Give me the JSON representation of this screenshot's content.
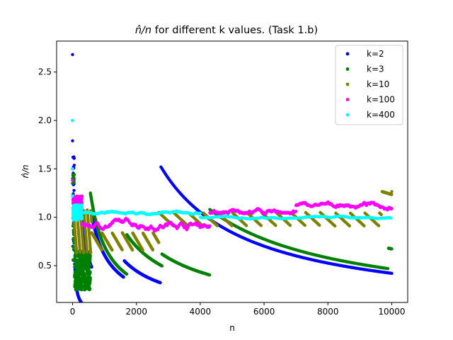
{
  "chart_data": {
    "type": "scatter",
    "title_math": "n̂/n",
    "title_rest": " for different k values. (Task 1.b)",
    "xlabel": "n",
    "ylabel_math": "n̂/n",
    "xlim": [
      -500,
      10500
    ],
    "ylim": [
      0.12,
      2.82
    ],
    "xticks": [
      0,
      2000,
      4000,
      6000,
      8000,
      10000
    ],
    "xtick_labels": [
      "0",
      "2000",
      "4000",
      "6000",
      "8000",
      "10000"
    ],
    "yticks": [
      0.5,
      1.0,
      1.5,
      2.0,
      2.5
    ],
    "ytick_labels": [
      "0.5",
      "1.0",
      "1.5",
      "2.0",
      "2.5"
    ],
    "legend_position": "top-right",
    "series": [
      {
        "name": "k=2",
        "color": "#0000ff",
        "outliers": [
          [
            0,
            2.68
          ],
          [
            0,
            2.0
          ],
          [
            0,
            1.79
          ],
          [
            0,
            1.5
          ]
        ],
        "segments": [
          {
            "x0": 10,
            "x1": 60,
            "y0": 1.2,
            "kind": "noise",
            "amp": 0.5
          },
          {
            "x0": 60,
            "x1": 280,
            "y0": 0.55,
            "kind": "decay"
          },
          {
            "x0": 290,
            "x1": 600,
            "y0": 1.0,
            "kind": "decay"
          },
          {
            "x0": 610,
            "x1": 1600,
            "y0": 1.0,
            "kind": "decay"
          },
          {
            "x0": 1620,
            "x1": 2750,
            "y0": 0.55,
            "kind": "decay"
          },
          {
            "x0": 2770,
            "x1": 10000,
            "y0": 1.52,
            "kind": "decay"
          }
        ]
      },
      {
        "name": "k=3",
        "color": "#008000",
        "outliers": [
          [
            0,
            1.4
          ],
          [
            0,
            1.35
          ]
        ],
        "segments": [
          {
            "x0": 10,
            "x1": 60,
            "y0": 1.0,
            "kind": "noise",
            "amp": 0.5
          },
          {
            "x0": 60,
            "x1": 560,
            "y0": 0.45,
            "kind": "noise",
            "amp": 0.2
          },
          {
            "x0": 560,
            "x1": 1700,
            "y0": 1.25,
            "kind": "decay"
          },
          {
            "x0": 1700,
            "x1": 2800,
            "y0": 0.82,
            "kind": "decay"
          },
          {
            "x0": 2800,
            "x1": 4300,
            "y0": 0.62,
            "kind": "decay"
          },
          {
            "x0": 4300,
            "x1": 9900,
            "y0": 1.08,
            "kind": "decay"
          },
          {
            "x0": 9900,
            "x1": 10000,
            "y0": 0.68,
            "kind": "decay"
          }
        ]
      },
      {
        "name": "k=10",
        "color": "#808000",
        "outliers": [],
        "segments": [
          {
            "x0": 20,
            "x1": 600,
            "y0": 0.85,
            "kind": "saw",
            "period": 110,
            "amp": 0.45
          },
          {
            "x0": 600,
            "x1": 2700,
            "y0": 0.75,
            "kind": "saw",
            "period": 320,
            "amp": 0.18
          },
          {
            "x0": 2700,
            "x1": 9700,
            "y0": 0.98,
            "kind": "saw",
            "period": 460,
            "amp": 0.14
          },
          {
            "x0": 9700,
            "x1": 10000,
            "y0": 1.25,
            "kind": "saw",
            "period": 300,
            "amp": 0.03
          }
        ]
      },
      {
        "name": "k=100",
        "color": "#ff00ff",
        "outliers": [
          [
            0,
            1.5
          ],
          [
            0,
            1.38
          ]
        ],
        "segments": [
          {
            "x0": 10,
            "x1": 300,
            "y0": 1.1,
            "kind": "noise",
            "amp": 0.12
          },
          {
            "x0": 300,
            "x1": 4300,
            "y0": 0.93,
            "kind": "walk",
            "amp": 0.08
          },
          {
            "x0": 4300,
            "x1": 7000,
            "y0": 1.05,
            "kind": "walk",
            "amp": 0.05
          },
          {
            "x0": 7000,
            "x1": 10000,
            "y0": 1.12,
            "kind": "walk",
            "amp": 0.05
          }
        ]
      },
      {
        "name": "k=400",
        "color": "#00ffff",
        "outliers": [
          [
            0,
            2.0
          ],
          [
            0,
            1.5
          ],
          [
            0,
            1.22
          ]
        ],
        "segments": [
          {
            "x0": 10,
            "x1": 300,
            "y0": 1.05,
            "kind": "noise",
            "amp": 0.08
          },
          {
            "x0": 300,
            "x1": 4000,
            "y0": 1.04,
            "kind": "walk",
            "amp": 0.03
          },
          {
            "x0": 4000,
            "x1": 10000,
            "y0": 1.0,
            "kind": "walk",
            "amp": 0.02
          }
        ]
      }
    ]
  }
}
